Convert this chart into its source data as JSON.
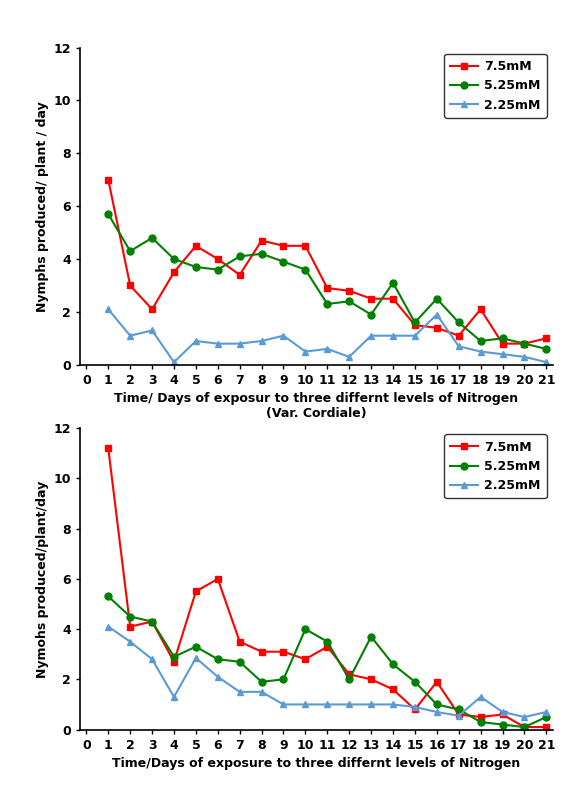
{
  "days": [
    0,
    1,
    2,
    3,
    4,
    5,
    6,
    7,
    8,
    9,
    10,
    11,
    12,
    13,
    14,
    15,
    16,
    17,
    18,
    19,
    20,
    21
  ],
  "chart1": {
    "title": "Time/ Days of exposur to three differnt levels of Nitrogen\n(Var. Cordiale)",
    "ylabel": "Nymphs produced/ plant / day",
    "y75": [
      null,
      7.0,
      3.0,
      2.1,
      3.5,
      4.5,
      4.0,
      3.4,
      4.7,
      4.5,
      4.5,
      2.9,
      2.8,
      2.5,
      2.5,
      1.5,
      1.4,
      1.1,
      2.1,
      0.8,
      0.8,
      1.0
    ],
    "y525": [
      null,
      5.7,
      4.3,
      4.8,
      4.0,
      3.7,
      3.6,
      4.1,
      4.2,
      3.9,
      3.6,
      2.3,
      2.4,
      1.9,
      3.1,
      1.6,
      2.5,
      1.6,
      0.9,
      1.0,
      0.8,
      0.6
    ],
    "y225": [
      null,
      2.1,
      1.1,
      1.3,
      0.1,
      0.9,
      0.8,
      0.8,
      0.9,
      1.1,
      0.5,
      0.6,
      0.3,
      1.1,
      1.1,
      1.1,
      1.9,
      0.7,
      0.5,
      0.4,
      0.3,
      0.1
    ]
  },
  "chart2": {
    "title": "Time/Days of exposure to three differnt levels of Nitrogen",
    "ylabel": "Nymohs produced/plant/day",
    "y75": [
      null,
      11.2,
      4.1,
      4.3,
      2.7,
      5.5,
      6.0,
      3.5,
      3.1,
      3.1,
      2.8,
      3.3,
      2.2,
      2.0,
      1.6,
      0.8,
      1.9,
      0.6,
      0.5,
      0.6,
      0.1,
      0.1
    ],
    "y525": [
      null,
      5.3,
      4.5,
      4.3,
      2.9,
      3.3,
      2.8,
      2.7,
      1.9,
      2.0,
      4.0,
      3.5,
      2.0,
      3.7,
      2.6,
      1.9,
      1.0,
      0.8,
      0.3,
      0.2,
      0.1,
      0.5
    ],
    "y225": [
      null,
      4.1,
      3.5,
      2.8,
      1.3,
      2.85,
      2.1,
      1.5,
      1.5,
      1.0,
      1.0,
      1.0,
      1.0,
      1.0,
      1.0,
      0.9,
      0.7,
      0.55,
      1.3,
      0.7,
      0.5,
      0.7
    ]
  },
  "color_75": "#ff0000",
  "color_525": "#008000",
  "color_225": "#5b9bd5",
  "marker_75": "s",
  "marker_525": "o",
  "marker_225": "^",
  "legend_labels": [
    "7.5mM",
    "5.25mM",
    "2.25mM"
  ],
  "ylim": [
    0,
    12
  ],
  "yticks": [
    0,
    2,
    4,
    6,
    8,
    10,
    12
  ]
}
